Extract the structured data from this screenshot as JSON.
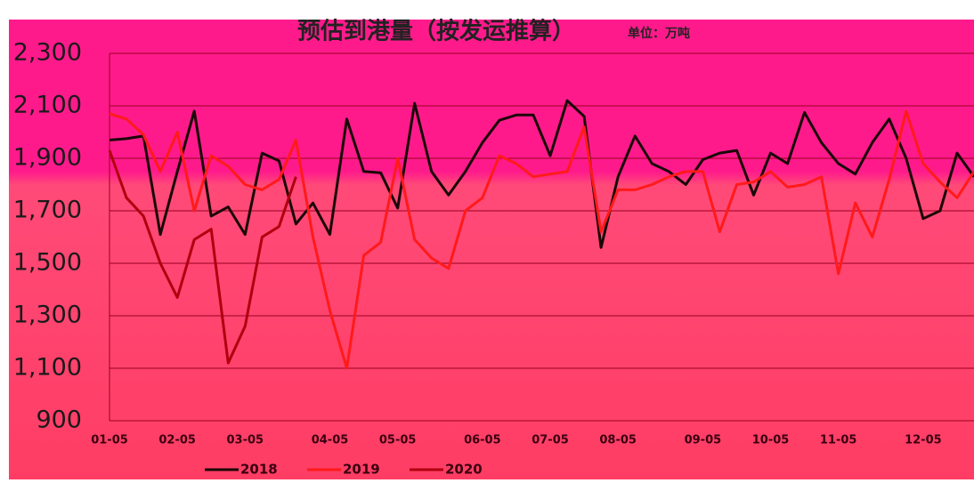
{
  "chart_data": {
    "type": "line",
    "title": "预估到港量（按发运推算）",
    "subtitle": "单位：万吨",
    "categories": [
      "01-05",
      null,
      null,
      null,
      "02-05",
      null,
      null,
      null,
      "03-05",
      null,
      null,
      null,
      null,
      "04-05",
      null,
      null,
      null,
      "05-05",
      null,
      null,
      null,
      null,
      "06-05",
      null,
      null,
      null,
      "07-05",
      null,
      null,
      null,
      "08-05",
      null,
      null,
      null,
      null,
      "09-05",
      null,
      null,
      null,
      "10-05",
      null,
      null,
      null,
      "11-05",
      null,
      null,
      null,
      null,
      "12-05",
      null,
      null,
      null
    ],
    "series": [
      {
        "name": "2018",
        "color": "#1a0808",
        "values": [
          1970,
          1975,
          1985,
          1610,
          1850,
          2080,
          1680,
          1715,
          1610,
          1920,
          1890,
          1650,
          1730,
          1610,
          2050,
          1850,
          1845,
          1710,
          2110,
          1850,
          1760,
          1850,
          1960,
          2045,
          2065,
          2065,
          1910,
          2120,
          2060,
          1560,
          1830,
          1985,
          1880,
          1850,
          1800,
          1895,
          1920,
          1930,
          1760,
          1920,
          1880,
          2075,
          1960,
          1880,
          1840,
          1960,
          2050,
          1900,
          1670,
          1700,
          1920,
          1830
        ]
      },
      {
        "name": "2019",
        "color": "#ff1a1a",
        "values": [
          2070,
          2050,
          1990,
          1850,
          2000,
          1700,
          1910,
          1870,
          1800,
          1780,
          1820,
          1970,
          1600,
          1320,
          1100,
          1530,
          1580,
          1900,
          1590,
          1520,
          1480,
          1700,
          1750,
          1910,
          1880,
          1830,
          1840,
          1850,
          2020,
          1620,
          1780,
          1780,
          1800,
          1830,
          1850,
          1850,
          1620,
          1800,
          1810,
          1850,
          1790,
          1800,
          1830,
          1460,
          1730,
          1600,
          1820,
          2080,
          1880,
          1810,
          1750,
          1850
        ]
      },
      {
        "name": "2020",
        "color": "#b0000e",
        "values": [
          1930,
          1750,
          1680,
          1500,
          1370,
          1590,
          1630,
          1120,
          1260,
          1600,
          1640,
          1830,
          null,
          null,
          null,
          null,
          null,
          null,
          null,
          null,
          null,
          null,
          null,
          null,
          null,
          null,
          null,
          null,
          null,
          null,
          null,
          null,
          null,
          null,
          null,
          null,
          null,
          null,
          null,
          null,
          null,
          null,
          null,
          null,
          null,
          null,
          null,
          null,
          null,
          null,
          null,
          null
        ]
      }
    ],
    "ylim": [
      900,
      2300
    ],
    "yticks": [
      900,
      {
        "value": 1100,
        "label": "1,100"
      },
      {
        "value": 1300,
        "label": "1,300"
      },
      {
        "value": 1500,
        "label": "1,500"
      },
      {
        "value": 1700,
        "label": "1,700"
      },
      {
        "value": 1900,
        "label": "1,900"
      },
      {
        "value": 2100,
        "label": "2,100"
      },
      {
        "value": 2300,
        "label": "2,300"
      }
    ],
    "grid": true,
    "legend": "bottom"
  }
}
